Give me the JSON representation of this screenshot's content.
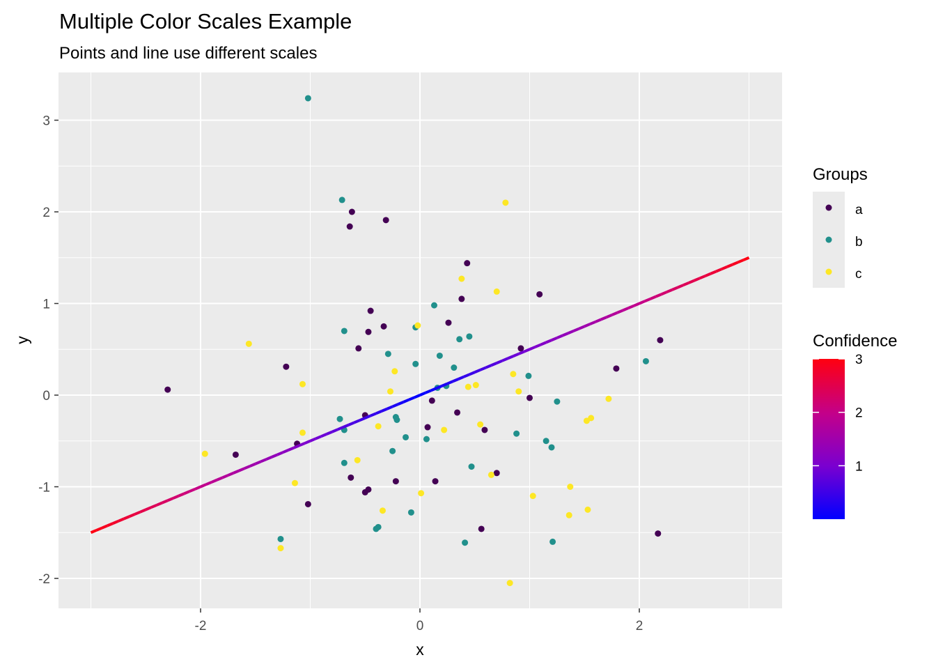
{
  "chart_data": {
    "type": "scatter",
    "title": "Multiple Color Scales Example",
    "subtitle": "Points and line use different scales",
    "xlabel": "x",
    "ylabel": "y",
    "xlim": [
      -3.0,
      3.3
    ],
    "ylim": [
      -2.3,
      3.5
    ],
    "x_ticks": [
      -2,
      0,
      2
    ],
    "y_ticks": [
      -2,
      -1,
      0,
      1,
      2,
      3
    ],
    "x_tick_labels": [
      "-2",
      "0",
      "2"
    ],
    "y_tick_labels": [
      "-2",
      "-1",
      "0",
      "1",
      "2",
      "3"
    ],
    "grid": true,
    "legend_position": "right",
    "colors": {
      "panel": "#EBEBEB",
      "grid": "#FFFFFF",
      "a": "#440154",
      "b": "#21908C",
      "c": "#FDE725",
      "line_low": "#0000FF",
      "line_mid": "#B000B0",
      "line_high": "#FF0000"
    },
    "series": [
      {
        "name": "a",
        "color": "#440154",
        "points": [
          [
            -2.3,
            0.06
          ],
          [
            -1.68,
            -0.65
          ],
          [
            -1.22,
            0.31
          ],
          [
            -1.12,
            -0.53
          ],
          [
            -1.02,
            -1.19
          ],
          [
            -0.62,
            2.0
          ],
          [
            -0.64,
            1.84
          ],
          [
            -0.31,
            1.91
          ],
          [
            -0.63,
            -0.9
          ],
          [
            -0.56,
            0.51
          ],
          [
            -0.5,
            -0.22
          ],
          [
            -0.47,
            0.69
          ],
          [
            -0.45,
            0.92
          ],
          [
            -0.33,
            0.75
          ],
          [
            -0.5,
            -1.06
          ],
          [
            -0.47,
            -1.03
          ],
          [
            -0.22,
            -0.94
          ],
          [
            0.07,
            -0.35
          ],
          [
            0.11,
            -0.06
          ],
          [
            0.14,
            -0.94
          ],
          [
            0.26,
            0.79
          ],
          [
            0.34,
            -0.19
          ],
          [
            0.38,
            1.05
          ],
          [
            0.43,
            1.44
          ],
          [
            0.59,
            -0.38
          ],
          [
            0.56,
            -1.46
          ],
          [
            0.7,
            -0.85
          ],
          [
            0.92,
            0.51
          ],
          [
            1.0,
            -0.03
          ],
          [
            1.09,
            1.1
          ],
          [
            1.79,
            0.29
          ],
          [
            2.19,
            0.6
          ],
          [
            2.17,
            -1.51
          ]
        ]
      },
      {
        "name": "b",
        "color": "#21908C",
        "points": [
          [
            -1.02,
            3.24
          ],
          [
            -0.71,
            2.13
          ],
          [
            -0.69,
            0.7
          ],
          [
            -0.73,
            -0.26
          ],
          [
            -0.69,
            -0.38
          ],
          [
            -0.69,
            -0.74
          ],
          [
            -1.27,
            -1.57
          ],
          [
            -0.4,
            -1.46
          ],
          [
            -0.38,
            -1.44
          ],
          [
            -0.29,
            0.45
          ],
          [
            -0.25,
            -0.61
          ],
          [
            -0.22,
            -0.24
          ],
          [
            -0.21,
            -0.27
          ],
          [
            -0.13,
            -0.46
          ],
          [
            -0.08,
            -1.28
          ],
          [
            -0.04,
            0.74
          ],
          [
            -0.04,
            0.34
          ],
          [
            0.13,
            0.98
          ],
          [
            0.18,
            0.43
          ],
          [
            0.24,
            0.1
          ],
          [
            0.31,
            0.3
          ],
          [
            0.36,
            0.61
          ],
          [
            0.45,
            0.64
          ],
          [
            0.47,
            -0.78
          ],
          [
            0.41,
            -1.61
          ],
          [
            0.06,
            -0.48
          ],
          [
            0.88,
            -0.42
          ],
          [
            0.99,
            0.21
          ],
          [
            1.15,
            -0.5
          ],
          [
            1.2,
            -0.57
          ],
          [
            1.25,
            -0.07
          ],
          [
            1.21,
            -1.6
          ],
          [
            2.06,
            0.37
          ],
          [
            0.16,
            0.08
          ]
        ]
      },
      {
        "name": "c",
        "color": "#FDE725",
        "points": [
          [
            -1.96,
            -0.64
          ],
          [
            -1.56,
            0.56
          ],
          [
            -1.07,
            0.12
          ],
          [
            -1.07,
            -0.41
          ],
          [
            -1.14,
            -0.96
          ],
          [
            -1.27,
            -1.67
          ],
          [
            -0.57,
            -0.71
          ],
          [
            -0.34,
            -1.26
          ],
          [
            -0.38,
            -0.34
          ],
          [
            -0.27,
            0.04
          ],
          [
            -0.23,
            0.26
          ],
          [
            -0.02,
            0.76
          ],
          [
            0.01,
            -1.07
          ],
          [
            0.22,
            -0.38
          ],
          [
            0.38,
            1.27
          ],
          [
            0.44,
            0.09
          ],
          [
            0.51,
            0.11
          ],
          [
            0.55,
            -0.32
          ],
          [
            0.65,
            -0.87
          ],
          [
            0.7,
            1.13
          ],
          [
            0.78,
            2.1
          ],
          [
            0.85,
            0.23
          ],
          [
            0.9,
            0.04
          ],
          [
            0.82,
            -2.05
          ],
          [
            1.03,
            -1.1
          ],
          [
            1.37,
            -1.0
          ],
          [
            1.36,
            -1.31
          ],
          [
            1.53,
            -1.25
          ],
          [
            1.52,
            -0.28
          ],
          [
            1.56,
            -0.25
          ],
          [
            1.72,
            -0.04
          ]
        ]
      }
    ],
    "line": {
      "x": [
        -3.0,
        3.0
      ],
      "y": [
        -1.5,
        1.5
      ],
      "color_by": "Confidence",
      "color_value": "|y| * 2"
    },
    "legends": [
      {
        "title": "Groups",
        "type": "discrete",
        "entries": [
          "a",
          "b",
          "c"
        ]
      },
      {
        "title": "Confidence",
        "type": "gradient",
        "range": [
          0,
          3
        ],
        "ticks": [
          "1",
          "2",
          "3"
        ],
        "tick_values": [
          1,
          2,
          3
        ]
      }
    ]
  }
}
